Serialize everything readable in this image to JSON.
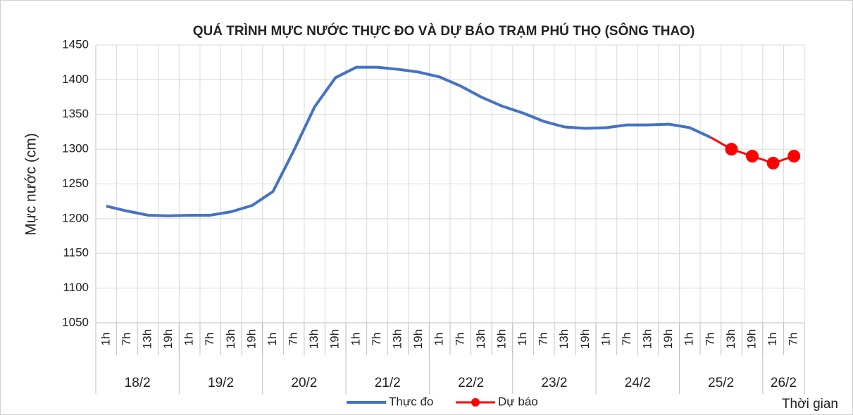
{
  "chart_data": {
    "type": "line",
    "title": "QUÁ TRÌNH MỰC NƯỚC THỰC ĐO VÀ DỰ BÁO TRẠM PHÚ THỌ (SÔNG THAO)",
    "y_label": "Mực nước (cm)",
    "x_label": "Thời gian",
    "categories": [
      "1h",
      "7h",
      "13h",
      "19h",
      "1h",
      "7h",
      "13h",
      "19h",
      "1h",
      "7h",
      "13h",
      "19h",
      "1h",
      "7h",
      "13h",
      "19h",
      "1h",
      "7h",
      "13h",
      "19h",
      "1h",
      "7h",
      "13h",
      "19h",
      "1h",
      "7h",
      "13h",
      "19h",
      "1h",
      "7h",
      "13h",
      "19h",
      "1h",
      "7h"
    ],
    "groups": [
      {
        "label": "18/2",
        "span": 4
      },
      {
        "label": "19/2",
        "span": 4
      },
      {
        "label": "20/2",
        "span": 4
      },
      {
        "label": "21/2",
        "span": 4
      },
      {
        "label": "22/2",
        "span": 4
      },
      {
        "label": "23/2",
        "span": 4
      },
      {
        "label": "24/2",
        "span": 4
      },
      {
        "label": "25/2",
        "span": 4
      },
      {
        "label": "26/2",
        "span": 2
      }
    ],
    "series": [
      {
        "name": "Thực đo",
        "color": "#4472c4",
        "values": [
          1218,
          1211,
          1205,
          1204,
          1205,
          1205,
          1210,
          1219,
          1239,
          1298,
          1361,
          1403,
          1418,
          1418,
          1415,
          1411,
          1404,
          1391,
          1375,
          1362,
          1352,
          1340,
          1332,
          1330,
          1331,
          1335,
          1335,
          1336,
          1331,
          1317,
          null,
          null,
          null,
          null
        ]
      },
      {
        "name": "Dự báo",
        "color": "#ff0000",
        "values": [
          null,
          null,
          null,
          null,
          null,
          null,
          null,
          null,
          null,
          null,
          null,
          null,
          null,
          null,
          null,
          null,
          null,
          null,
          null,
          null,
          null,
          null,
          null,
          null,
          null,
          null,
          null,
          null,
          null,
          1317,
          1300,
          1290,
          1280,
          1290
        ]
      }
    ],
    "ylim": [
      1050,
      1450
    ],
    "yticks": [
      1050,
      1100,
      1150,
      1200,
      1250,
      1300,
      1350,
      1400,
      1450
    ],
    "grid": true
  }
}
